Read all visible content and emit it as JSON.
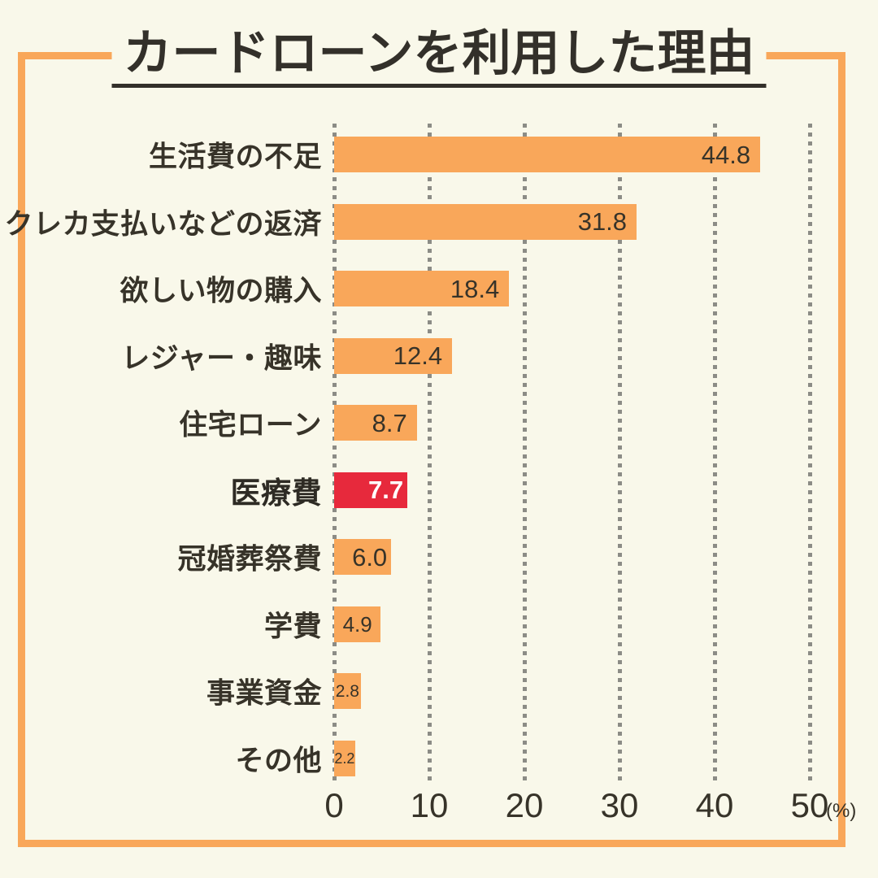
{
  "title": "カードローンを利用した理由",
  "colors": {
    "background": "#F9F8EA",
    "frame": "#F9A75A",
    "bar": "#F9A75A",
    "highlight_bar": "#E7293C",
    "text": "#373329",
    "value_on_highlight": "#FFFFFF",
    "grid": "#8C8C86"
  },
  "chart_data": {
    "type": "bar",
    "orientation": "horizontal",
    "title": "カードローンを利用した理由",
    "xlabel": "(%)",
    "ylabel": "",
    "xlim": [
      0,
      50
    ],
    "x_ticks": [
      0,
      10,
      20,
      30,
      40,
      50
    ],
    "x_unit_label": "(%)",
    "grid": "dotted-vertical",
    "legend": "none",
    "categories": [
      "生活費の不足",
      "クレカ支払いなどの返済",
      "欲しい物の購入",
      "レジャー・趣味",
      "住宅ローン",
      "医療費",
      "冠婚葬祭費",
      "学費",
      "事業資金",
      "その他"
    ],
    "values": [
      44.8,
      31.8,
      18.4,
      12.4,
      8.7,
      7.7,
      6.0,
      4.9,
      2.8,
      2.2
    ],
    "items": [
      {
        "label": "生活費の不足",
        "value": 44.8,
        "display": "44.8",
        "highlight": false
      },
      {
        "label": "クレカ支払いなどの返済",
        "value": 31.8,
        "display": "31.8",
        "highlight": false
      },
      {
        "label": "欲しい物の購入",
        "value": 18.4,
        "display": "18.4",
        "highlight": false
      },
      {
        "label": "レジャー・趣味",
        "value": 12.4,
        "display": "12.4",
        "highlight": false
      },
      {
        "label": "住宅ローン",
        "value": 8.7,
        "display": "8.7",
        "highlight": false
      },
      {
        "label": "医療費",
        "value": 7.7,
        "display": "7.7",
        "highlight": true
      },
      {
        "label": "冠婚葬祭費",
        "value": 6.0,
        "display": "6.0",
        "highlight": false
      },
      {
        "label": "学費",
        "value": 4.9,
        "display": "4.9",
        "highlight": false
      },
      {
        "label": "事業資金",
        "value": 2.8,
        "display": "2.8",
        "highlight": false
      },
      {
        "label": "その他",
        "value": 2.2,
        "display": "2.2",
        "highlight": false
      }
    ]
  }
}
